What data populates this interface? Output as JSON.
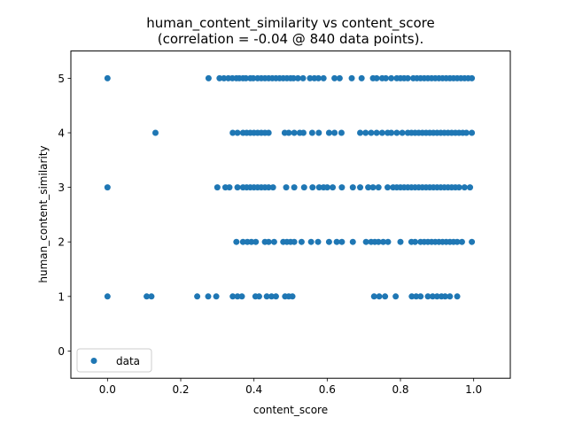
{
  "chart_data": {
    "type": "scatter",
    "title": "human_content_similarity vs content_score",
    "subtitle": "(correlation = -0.04 @ 840 data points).",
    "xlabel": "content_score",
    "ylabel": "human_content_similarity",
    "xlim": [
      -0.1,
      1.1
    ],
    "ylim": [
      -0.5,
      5.5
    ],
    "xticks": [
      0.0,
      0.2,
      0.4,
      0.6,
      0.8,
      1.0
    ],
    "xtick_labels": [
      "0.0",
      "0.2",
      "0.4",
      "0.6",
      "0.8",
      "1.0"
    ],
    "yticks": [
      0,
      1,
      2,
      3,
      4,
      5
    ],
    "ytick_labels": [
      "0",
      "1",
      "2",
      "3",
      "4",
      "5"
    ],
    "grid": false,
    "legend_position": "lower-left",
    "colors": {
      "series": "#1f77b4"
    },
    "series": [
      {
        "name": "data",
        "points": [
          [
            0.0,
            5
          ],
          [
            0.276,
            5
          ],
          [
            0.306,
            5
          ],
          [
            0.318,
            5
          ],
          [
            0.33,
            5
          ],
          [
            0.341,
            5
          ],
          [
            0.352,
            5
          ],
          [
            0.36,
            5
          ],
          [
            0.37,
            5
          ],
          [
            0.378,
            5
          ],
          [
            0.39,
            5
          ],
          [
            0.398,
            5
          ],
          [
            0.41,
            5
          ],
          [
            0.42,
            5
          ],
          [
            0.43,
            5
          ],
          [
            0.44,
            5
          ],
          [
            0.45,
            5
          ],
          [
            0.46,
            5
          ],
          [
            0.47,
            5
          ],
          [
            0.48,
            5
          ],
          [
            0.49,
            5
          ],
          [
            0.5,
            5
          ],
          [
            0.508,
            5
          ],
          [
            0.52,
            5
          ],
          [
            0.534,
            5
          ],
          [
            0.553,
            5
          ],
          [
            0.565,
            5
          ],
          [
            0.576,
            5
          ],
          [
            0.59,
            5
          ],
          [
            0.62,
            5
          ],
          [
            0.634,
            5
          ],
          [
            0.667,
            5
          ],
          [
            0.694,
            5
          ],
          [
            0.725,
            5
          ],
          [
            0.735,
            5
          ],
          [
            0.75,
            5
          ],
          [
            0.76,
            5
          ],
          [
            0.775,
            5
          ],
          [
            0.79,
            5
          ],
          [
            0.8,
            5
          ],
          [
            0.81,
            5
          ],
          [
            0.82,
            5
          ],
          [
            0.835,
            5
          ],
          [
            0.845,
            5
          ],
          [
            0.855,
            5
          ],
          [
            0.865,
            5
          ],
          [
            0.875,
            5
          ],
          [
            0.885,
            5
          ],
          [
            0.895,
            5
          ],
          [
            0.905,
            5
          ],
          [
            0.915,
            5
          ],
          [
            0.925,
            5
          ],
          [
            0.935,
            5
          ],
          [
            0.945,
            5
          ],
          [
            0.955,
            5
          ],
          [
            0.965,
            5
          ],
          [
            0.975,
            5
          ],
          [
            0.985,
            5
          ],
          [
            0.995,
            5
          ],
          [
            0.131,
            4
          ],
          [
            0.342,
            4
          ],
          [
            0.355,
            4
          ],
          [
            0.37,
            4
          ],
          [
            0.38,
            4
          ],
          [
            0.39,
            4
          ],
          [
            0.4,
            4
          ],
          [
            0.41,
            4
          ],
          [
            0.42,
            4
          ],
          [
            0.43,
            4
          ],
          [
            0.44,
            4
          ],
          [
            0.484,
            4
          ],
          [
            0.495,
            4
          ],
          [
            0.51,
            4
          ],
          [
            0.525,
            4
          ],
          [
            0.535,
            4
          ],
          [
            0.559,
            4
          ],
          [
            0.577,
            4
          ],
          [
            0.605,
            4
          ],
          [
            0.62,
            4
          ],
          [
            0.639,
            4
          ],
          [
            0.69,
            4
          ],
          [
            0.705,
            4
          ],
          [
            0.72,
            4
          ],
          [
            0.735,
            4
          ],
          [
            0.75,
            4
          ],
          [
            0.765,
            4
          ],
          [
            0.775,
            4
          ],
          [
            0.79,
            4
          ],
          [
            0.805,
            4
          ],
          [
            0.82,
            4
          ],
          [
            0.83,
            4
          ],
          [
            0.84,
            4
          ],
          [
            0.85,
            4
          ],
          [
            0.86,
            4
          ],
          [
            0.87,
            4
          ],
          [
            0.88,
            4
          ],
          [
            0.89,
            4
          ],
          [
            0.9,
            4
          ],
          [
            0.91,
            4
          ],
          [
            0.92,
            4
          ],
          [
            0.93,
            4
          ],
          [
            0.94,
            4
          ],
          [
            0.95,
            4
          ],
          [
            0.96,
            4
          ],
          [
            0.97,
            4
          ],
          [
            0.98,
            4
          ],
          [
            0.995,
            4
          ],
          [
            0.0,
            3
          ],
          [
            0.3,
            3
          ],
          [
            0.322,
            3
          ],
          [
            0.333,
            3
          ],
          [
            0.355,
            3
          ],
          [
            0.37,
            3
          ],
          [
            0.38,
            3
          ],
          [
            0.39,
            3
          ],
          [
            0.4,
            3
          ],
          [
            0.41,
            3
          ],
          [
            0.42,
            3
          ],
          [
            0.43,
            3
          ],
          [
            0.44,
            3
          ],
          [
            0.452,
            3
          ],
          [
            0.488,
            3
          ],
          [
            0.51,
            3
          ],
          [
            0.537,
            3
          ],
          [
            0.56,
            3
          ],
          [
            0.578,
            3
          ],
          [
            0.59,
            3
          ],
          [
            0.6,
            3
          ],
          [
            0.615,
            3
          ],
          [
            0.64,
            3
          ],
          [
            0.67,
            3
          ],
          [
            0.69,
            3
          ],
          [
            0.712,
            3
          ],
          [
            0.725,
            3
          ],
          [
            0.74,
            3
          ],
          [
            0.765,
            3
          ],
          [
            0.78,
            3
          ],
          [
            0.79,
            3
          ],
          [
            0.8,
            3
          ],
          [
            0.81,
            3
          ],
          [
            0.82,
            3
          ],
          [
            0.83,
            3
          ],
          [
            0.84,
            3
          ],
          [
            0.85,
            3
          ],
          [
            0.86,
            3
          ],
          [
            0.87,
            3
          ],
          [
            0.88,
            3
          ],
          [
            0.89,
            3
          ],
          [
            0.9,
            3
          ],
          [
            0.91,
            3
          ],
          [
            0.92,
            3
          ],
          [
            0.93,
            3
          ],
          [
            0.94,
            3
          ],
          [
            0.95,
            3
          ],
          [
            0.96,
            3
          ],
          [
            0.975,
            3
          ],
          [
            0.99,
            3
          ],
          [
            0.352,
            2
          ],
          [
            0.37,
            2
          ],
          [
            0.382,
            2
          ],
          [
            0.393,
            2
          ],
          [
            0.405,
            2
          ],
          [
            0.43,
            2
          ],
          [
            0.44,
            2
          ],
          [
            0.455,
            2
          ],
          [
            0.48,
            2
          ],
          [
            0.49,
            2
          ],
          [
            0.5,
            2
          ],
          [
            0.51,
            2
          ],
          [
            0.53,
            2
          ],
          [
            0.556,
            2
          ],
          [
            0.575,
            2
          ],
          [
            0.605,
            2
          ],
          [
            0.626,
            2
          ],
          [
            0.64,
            2
          ],
          [
            0.67,
            2
          ],
          [
            0.706,
            2
          ],
          [
            0.72,
            2
          ],
          [
            0.73,
            2
          ],
          [
            0.74,
            2
          ],
          [
            0.753,
            2
          ],
          [
            0.766,
            2
          ],
          [
            0.8,
            2
          ],
          [
            0.83,
            2
          ],
          [
            0.84,
            2
          ],
          [
            0.855,
            2
          ],
          [
            0.865,
            2
          ],
          [
            0.875,
            2
          ],
          [
            0.885,
            2
          ],
          [
            0.895,
            2
          ],
          [
            0.905,
            2
          ],
          [
            0.915,
            2
          ],
          [
            0.925,
            2
          ],
          [
            0.935,
            2
          ],
          [
            0.945,
            2
          ],
          [
            0.955,
            2
          ],
          [
            0.968,
            2
          ],
          [
            0.995,
            2
          ],
          [
            0.0,
            1
          ],
          [
            0.107,
            1
          ],
          [
            0.12,
            1
          ],
          [
            0.245,
            1
          ],
          [
            0.275,
            1
          ],
          [
            0.297,
            1
          ],
          [
            0.342,
            1
          ],
          [
            0.355,
            1
          ],
          [
            0.367,
            1
          ],
          [
            0.404,
            1
          ],
          [
            0.414,
            1
          ],
          [
            0.435,
            1
          ],
          [
            0.448,
            1
          ],
          [
            0.46,
            1
          ],
          [
            0.485,
            1
          ],
          [
            0.495,
            1
          ],
          [
            0.505,
            1
          ],
          [
            0.728,
            1
          ],
          [
            0.742,
            1
          ],
          [
            0.758,
            1
          ],
          [
            0.787,
            1
          ],
          [
            0.831,
            1
          ],
          [
            0.843,
            1
          ],
          [
            0.855,
            1
          ],
          [
            0.875,
            1
          ],
          [
            0.888,
            1
          ],
          [
            0.9,
            1
          ],
          [
            0.912,
            1
          ],
          [
            0.922,
            1
          ],
          [
            0.935,
            1
          ],
          [
            0.955,
            1
          ]
        ]
      }
    ]
  }
}
